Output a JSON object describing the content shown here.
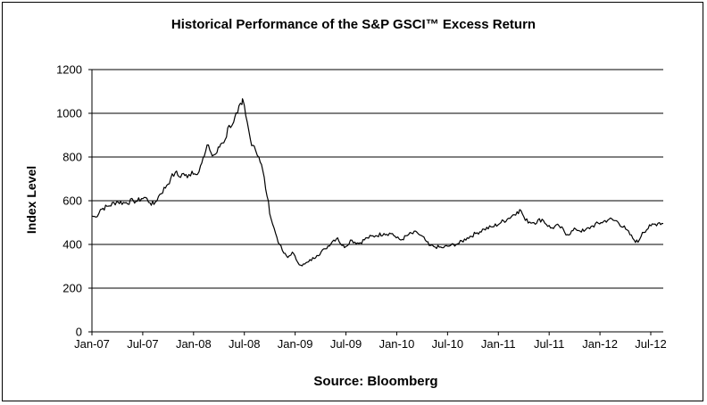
{
  "chart_data": {
    "type": "line",
    "title": "Historical Performance of the S&P GSCI™ Excess Return",
    "xlabel": "Source: Bloomberg",
    "ylabel": "Index Level",
    "ylim": [
      0,
      1200
    ],
    "yticks": [
      "0",
      "200",
      "400",
      "600",
      "800",
      "1000",
      "1200"
    ],
    "xticks": [
      "Jan-07",
      "Jul-07",
      "Jan-08",
      "Jul-08",
      "Jan-09",
      "Jul-09",
      "Jan-10",
      "Jul-10",
      "Jan-11",
      "Jul-11",
      "Jan-12",
      "Jul-12"
    ],
    "grid": true,
    "series": [
      {
        "values": [
          [
            "2007-01-01",
            530
          ],
          [
            "2007-01-15",
            525
          ],
          [
            "2007-02-01",
            560
          ],
          [
            "2007-03-01",
            575
          ],
          [
            "2007-04-01",
            595
          ],
          [
            "2007-05-01",
            590
          ],
          [
            "2007-06-01",
            600
          ],
          [
            "2007-06-15",
            597
          ],
          [
            "2007-07-01",
            610
          ],
          [
            "2007-07-15",
            615
          ],
          [
            "2007-08-01",
            590
          ],
          [
            "2007-08-15",
            583
          ],
          [
            "2007-09-01",
            620
          ],
          [
            "2007-10-01",
            670
          ],
          [
            "2007-10-15",
            700
          ],
          [
            "2007-11-01",
            730
          ],
          [
            "2007-11-15",
            710
          ],
          [
            "2007-12-01",
            725
          ],
          [
            "2007-12-15",
            705
          ],
          [
            "2008-01-01",
            735
          ],
          [
            "2008-01-15",
            720
          ],
          [
            "2008-02-01",
            760
          ],
          [
            "2008-02-15",
            805
          ],
          [
            "2008-03-01",
            855
          ],
          [
            "2008-03-15",
            805
          ],
          [
            "2008-04-01",
            820
          ],
          [
            "2008-04-15",
            860
          ],
          [
            "2008-05-01",
            880
          ],
          [
            "2008-05-15",
            945
          ],
          [
            "2008-06-01",
            960
          ],
          [
            "2008-06-15",
            1000
          ],
          [
            "2008-07-01",
            1040
          ],
          [
            "2008-07-05",
            1060
          ],
          [
            "2008-07-15",
            990
          ],
          [
            "2008-08-01",
            880
          ],
          [
            "2008-08-15",
            850
          ],
          [
            "2008-09-01",
            800
          ],
          [
            "2008-09-15",
            740
          ],
          [
            "2008-10-01",
            620
          ],
          [
            "2008-10-15",
            520
          ],
          [
            "2008-11-01",
            450
          ],
          [
            "2008-11-15",
            400
          ],
          [
            "2008-12-01",
            360
          ],
          [
            "2008-12-15",
            340
          ],
          [
            "2009-01-01",
            365
          ],
          [
            "2009-01-15",
            330
          ],
          [
            "2009-02-01",
            305
          ],
          [
            "2009-02-15",
            310
          ],
          [
            "2009-03-01",
            320
          ],
          [
            "2009-04-01",
            350
          ],
          [
            "2009-05-01",
            380
          ],
          [
            "2009-06-01",
            420
          ],
          [
            "2009-06-15",
            430
          ],
          [
            "2009-07-01",
            395
          ],
          [
            "2009-07-15",
            390
          ],
          [
            "2009-08-01",
            420
          ],
          [
            "2009-09-01",
            405
          ],
          [
            "2009-10-01",
            430
          ],
          [
            "2009-11-01",
            440
          ],
          [
            "2009-12-01",
            450
          ],
          [
            "2010-01-01",
            450
          ],
          [
            "2010-01-15",
            430
          ],
          [
            "2010-02-01",
            420
          ],
          [
            "2010-03-01",
            445
          ],
          [
            "2010-04-01",
            455
          ],
          [
            "2010-05-01",
            420
          ],
          [
            "2010-05-15",
            395
          ],
          [
            "2010-06-01",
            390
          ],
          [
            "2010-07-01",
            385
          ],
          [
            "2010-08-01",
            395
          ],
          [
            "2010-09-01",
            405
          ],
          [
            "2010-10-01",
            430
          ],
          [
            "2010-11-01",
            450
          ],
          [
            "2010-12-01",
            470
          ],
          [
            "2011-01-01",
            480
          ],
          [
            "2011-02-01",
            500
          ],
          [
            "2011-03-01",
            520
          ],
          [
            "2011-04-01",
            550
          ],
          [
            "2011-04-15",
            555
          ],
          [
            "2011-05-01",
            510
          ],
          [
            "2011-06-01",
            500
          ],
          [
            "2011-07-01",
            515
          ],
          [
            "2011-08-01",
            475
          ],
          [
            "2011-09-01",
            485
          ],
          [
            "2011-10-01",
            445
          ],
          [
            "2011-11-01",
            470
          ],
          [
            "2011-12-01",
            460
          ],
          [
            "2012-01-01",
            485
          ],
          [
            "2012-02-01",
            500
          ],
          [
            "2012-03-01",
            515
          ],
          [
            "2012-04-01",
            505
          ],
          [
            "2012-05-01",
            470
          ],
          [
            "2012-06-01",
            420
          ],
          [
            "2012-06-15",
            410
          ],
          [
            "2012-07-01",
            455
          ],
          [
            "2012-08-01",
            485
          ],
          [
            "2012-09-01",
            500
          ],
          [
            "2012-09-15",
            495
          ]
        ]
      }
    ]
  }
}
